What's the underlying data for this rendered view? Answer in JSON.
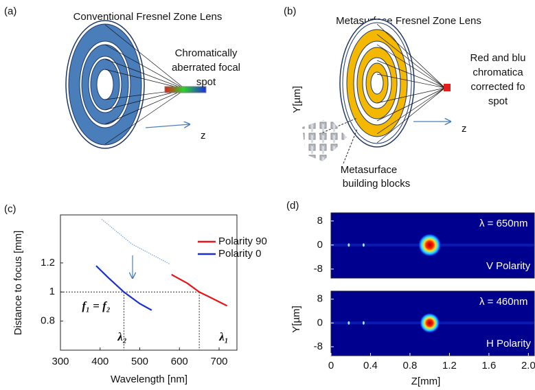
{
  "panel_a": {
    "label": "(a)",
    "title": "Conventional Fresnel Zone Lens",
    "annotation": [
      "Chromatically",
      "aberrated focal",
      "spot"
    ],
    "axis": "z"
  },
  "panel_b": {
    "label": "(b)",
    "title": "Metasurface Fresnel Zone Lens",
    "annotation": [
      "Red and blu",
      "chromatica",
      "corrected fo",
      "spot"
    ],
    "y_axis": "Y[µm]",
    "axis": "z",
    "callout": [
      "Metasurface",
      "building blocks"
    ]
  },
  "chart_c": {
    "type": "line",
    "label": "(c)",
    "x_label": "Wavelength [nm]",
    "y_label": "Distance to focus [mm]",
    "xlim": [
      300,
      745
    ],
    "xticks": [
      300,
      400,
      500,
      600,
      700
    ],
    "ylim": [
      0.6,
      1.53
    ],
    "yticks": [
      0.8,
      1,
      1.2
    ],
    "series": [
      {
        "name": "Polarity 90",
        "color": "#e8141c",
        "x": [
          580,
          620,
          650,
          680,
          720
        ],
        "values": [
          1.12,
          1.06,
          1.0,
          0.96,
          0.905
        ]
      },
      {
        "name": "Polarity 0",
        "color": "#1a2fd0",
        "x": [
          390,
          420,
          460,
          500,
          530
        ],
        "values": [
          1.18,
          1.1,
          1.0,
          0.92,
          0.875
        ]
      },
      {
        "color": "#5b8fd6",
        "style": "dotted",
        "x": [
          404,
          480,
          577
        ],
        "values": [
          1.5,
          1.33,
          1.19
        ]
      }
    ],
    "reference": {
      "y": 1,
      "x": [
        460,
        650
      ]
    },
    "annotations": [
      "f₁ = f₂",
      "λ₂",
      "λ₁"
    ]
  },
  "chart_d": {
    "type": "heatmap",
    "label": "(d)",
    "x_label": "Z[mm]",
    "y_label": "Y[µm]",
    "xlim": [
      0,
      2.06
    ],
    "xticks": [
      0,
      0.4,
      0.8,
      1.2,
      1.6,
      {
        "value": 2,
        "label": "2.0"
      }
    ],
    "ylim": [
      -11,
      10.7
    ],
    "yticks": [
      8,
      0,
      -8
    ],
    "plots": [
      {
        "wavelength": "λ = 650nm",
        "polarity": "V Polarity",
        "spots": [
          {
            "z": 0.18,
            "y": 0,
            "intensity": 0.15
          },
          {
            "z": 0.33,
            "y": 0,
            "intensity": 0.3
          },
          {
            "z": 1.0,
            "y": 0,
            "intensity": 1
          }
        ]
      },
      {
        "wavelength": "λ = 460nm",
        "polarity": "H Polarity",
        "spots": [
          {
            "z": 0.18,
            "y": 0,
            "intensity": 0.12
          },
          {
            "z": 0.33,
            "y": 0,
            "intensity": 0.25
          },
          {
            "z": 1.0,
            "y": 0,
            "intensity": 0.85
          }
        ]
      }
    ]
  }
}
